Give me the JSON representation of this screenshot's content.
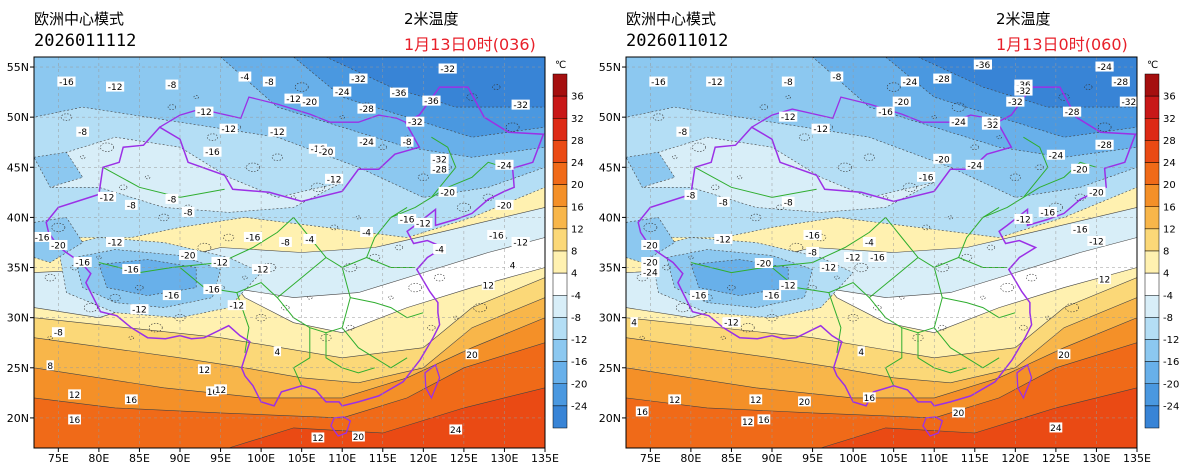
{
  "panels": [
    {
      "model": "欧洲中心模式",
      "run": "2026011112",
      "variable": "2米温度",
      "valid": "1月13日0时(036)",
      "labels": [
        {
          "t": "-16",
          "lon": 76,
          "lat": 53.5
        },
        {
          "t": "-12",
          "lon": 82,
          "lat": 53
        },
        {
          "t": "-8",
          "lon": 89,
          "lat": 53.2
        },
        {
          "t": "-4",
          "lon": 98,
          "lat": 54
        },
        {
          "t": "-8",
          "lon": 101,
          "lat": 53.5
        },
        {
          "t": "-12",
          "lon": 104,
          "lat": 51.8
        },
        {
          "t": "-20",
          "lon": 106,
          "lat": 51.5
        },
        {
          "t": "-32",
          "lon": 112,
          "lat": 53.8
        },
        {
          "t": "-24",
          "lon": 110,
          "lat": 52.5
        },
        {
          "t": "-36",
          "lon": 117,
          "lat": 52.4
        },
        {
          "t": "-28",
          "lon": 113,
          "lat": 50.8
        },
        {
          "t": "-32",
          "lon": 123,
          "lat": 54.8
        },
        {
          "t": "-36",
          "lon": 121,
          "lat": 51.6
        },
        {
          "t": "-32",
          "lon": 132,
          "lat": 51.2
        },
        {
          "t": "-12",
          "lon": 93,
          "lat": 50.5
        },
        {
          "t": "-12",
          "lon": 96,
          "lat": 48.8
        },
        {
          "t": "-8",
          "lon": 78,
          "lat": 48.5
        },
        {
          "t": "-12",
          "lon": 102,
          "lat": 48.5
        },
        {
          "t": "-16",
          "lon": 107,
          "lat": 46.8
        },
        {
          "t": "-20",
          "lon": 108,
          "lat": 46.5
        },
        {
          "t": "-24",
          "lon": 113,
          "lat": 47.5
        },
        {
          "t": "-32",
          "lon": 119,
          "lat": 49.5
        },
        {
          "t": "-8",
          "lon": 118,
          "lat": 47.5
        },
        {
          "t": "-32",
          "lon": 122,
          "lat": 45.8
        },
        {
          "t": "-28",
          "lon": 122,
          "lat": 44.8
        },
        {
          "t": "-24",
          "lon": 130,
          "lat": 45.2
        },
        {
          "t": "-20",
          "lon": 123,
          "lat": 42.5
        },
        {
          "t": "-20",
          "lon": 130,
          "lat": 41.2
        },
        {
          "t": "-12",
          "lon": 109,
          "lat": 43.8
        },
        {
          "t": "-16",
          "lon": 94,
          "lat": 46.5
        },
        {
          "t": "-8",
          "lon": 89,
          "lat": 41.8
        },
        {
          "t": "-12",
          "lon": 81,
          "lat": 42
        },
        {
          "t": "-8",
          "lon": 84,
          "lat": 41.2
        },
        {
          "t": "-8",
          "lon": 91,
          "lat": 40.5
        },
        {
          "t": "-16",
          "lon": 118,
          "lat": 39.8
        },
        {
          "t": "-12",
          "lon": 120,
          "lat": 39.4
        },
        {
          "t": "-16",
          "lon": 129,
          "lat": 38.2
        },
        {
          "t": "-12",
          "lon": 132,
          "lat": 37.5
        },
        {
          "t": "-16",
          "lon": 73,
          "lat": 38
        },
        {
          "t": "-20",
          "lon": 75,
          "lat": 37.2
        },
        {
          "t": "-12",
          "lon": 82,
          "lat": 37.5
        },
        {
          "t": "-16",
          "lon": 99,
          "lat": 38
        },
        {
          "t": "-8",
          "lon": 103,
          "lat": 37.5
        },
        {
          "t": "-4",
          "lon": 106,
          "lat": 37.8
        },
        {
          "t": "-4",
          "lon": 113,
          "lat": 38.5
        },
        {
          "t": "-16",
          "lon": 78,
          "lat": 35.5
        },
        {
          "t": "-16",
          "lon": 84,
          "lat": 34.8
        },
        {
          "t": "-20",
          "lon": 91,
          "lat": 36.2
        },
        {
          "t": "-12",
          "lon": 95,
          "lat": 35.5
        },
        {
          "t": "-12",
          "lon": 100,
          "lat": 34.8
        },
        {
          "t": "-4",
          "lon": 122,
          "lat": 36.8
        },
        {
          "t": "4",
          "lon": 131,
          "lat": 35.2
        },
        {
          "t": "-16",
          "lon": 89,
          "lat": 32.2
        },
        {
          "t": "-12",
          "lon": 85,
          "lat": 30.8
        },
        {
          "t": "-16",
          "lon": 94,
          "lat": 32.8
        },
        {
          "t": "-12",
          "lon": 97,
          "lat": 31.2
        },
        {
          "t": "-8",
          "lon": 75,
          "lat": 28.5
        },
        {
          "t": "12",
          "lon": 128,
          "lat": 33.2
        },
        {
          "t": "8",
          "lon": 74,
          "lat": 25.2
        },
        {
          "t": "4",
          "lon": 102,
          "lat": 26.6
        },
        {
          "t": "12",
          "lon": 93,
          "lat": 24.8
        },
        {
          "t": "20",
          "lon": 126,
          "lat": 26.3
        },
        {
          "t": "12",
          "lon": 77,
          "lat": 22.3
        },
        {
          "t": "16",
          "lon": 84,
          "lat": 21.8
        },
        {
          "t": "16",
          "lon": 94,
          "lat": 22.6
        },
        {
          "t": "12",
          "lon": 95,
          "lat": 22.8
        },
        {
          "t": "16",
          "lon": 77,
          "lat": 19.8
        },
        {
          "t": "12",
          "lon": 107,
          "lat": 18
        },
        {
          "t": "20",
          "lon": 112,
          "lat": 18.1
        },
        {
          "t": "24",
          "lon": 124,
          "lat": 18.8
        }
      ]
    },
    {
      "model": "欧洲中心模式",
      "run": "2026011012",
      "variable": "2米温度",
      "valid": "1月13日0时(060)",
      "labels": [
        {
          "t": "-16",
          "lon": 76,
          "lat": 53.5
        },
        {
          "t": "-12",
          "lon": 83,
          "lat": 53.5
        },
        {
          "t": "-8",
          "lon": 92,
          "lat": 53.5
        },
        {
          "t": "-8",
          "lon": 98,
          "lat": 54
        },
        {
          "t": "-24",
          "lon": 107,
          "lat": 53.5
        },
        {
          "t": "-28",
          "lon": 111,
          "lat": 53.8
        },
        {
          "t": "-36",
          "lon": 116,
          "lat": 55.2
        },
        {
          "t": "-24",
          "lon": 131,
          "lat": 55
        },
        {
          "t": "-28",
          "lon": 133,
          "lat": 53.5
        },
        {
          "t": "-36",
          "lon": 121,
          "lat": 53.2
        },
        {
          "t": "-32",
          "lon": 120,
          "lat": 51.5
        },
        {
          "t": "-32",
          "lon": 121,
          "lat": 52.6
        },
        {
          "t": "-28",
          "lon": 127,
          "lat": 50.5
        },
        {
          "t": "-32",
          "lon": 134,
          "lat": 51.5
        },
        {
          "t": "-20",
          "lon": 106,
          "lat": 51.5
        },
        {
          "t": "-12",
          "lon": 92,
          "lat": 50
        },
        {
          "t": "-12",
          "lon": 96,
          "lat": 48.8
        },
        {
          "t": "-16",
          "lon": 104,
          "lat": 50.5
        },
        {
          "t": "-24",
          "lon": 113,
          "lat": 49.5
        },
        {
          "t": "-28",
          "lon": 117,
          "lat": 49.5
        },
        {
          "t": "-32",
          "lon": 117,
          "lat": 49.2
        },
        {
          "t": "-8",
          "lon": 79,
          "lat": 48.5
        },
        {
          "t": "-20",
          "lon": 111,
          "lat": 45.8
        },
        {
          "t": "-24",
          "lon": 115,
          "lat": 45.2
        },
        {
          "t": "-24",
          "lon": 125,
          "lat": 46.2
        },
        {
          "t": "-28",
          "lon": 131,
          "lat": 47.2
        },
        {
          "t": "-20",
          "lon": 128,
          "lat": 44.8
        },
        {
          "t": "-20",
          "lon": 130,
          "lat": 42.5
        },
        {
          "t": "-16",
          "lon": 109,
          "lat": 44
        },
        {
          "t": "-8",
          "lon": 80,
          "lat": 42.2
        },
        {
          "t": "-8",
          "lon": 84,
          "lat": 41.5
        },
        {
          "t": "-8",
          "lon": 92,
          "lat": 41.5
        },
        {
          "t": "-16",
          "lon": 124,
          "lat": 40.5
        },
        {
          "t": "-12",
          "lon": 121,
          "lat": 39.8
        },
        {
          "t": "-16",
          "lon": 128,
          "lat": 38.8
        },
        {
          "t": "-12",
          "lon": 130,
          "lat": 37.6
        },
        {
          "t": "-20",
          "lon": 75,
          "lat": 37.2
        },
        {
          "t": "-12",
          "lon": 84,
          "lat": 37.8
        },
        {
          "t": "-16",
          "lon": 95,
          "lat": 38.2
        },
        {
          "t": "-8",
          "lon": 95,
          "lat": 36.5
        },
        {
          "t": "-12",
          "lon": 97,
          "lat": 35
        },
        {
          "t": "-12",
          "lon": 100,
          "lat": 36
        },
        {
          "t": "-16",
          "lon": 103,
          "lat": 36
        },
        {
          "t": "-4",
          "lon": 102,
          "lat": 37.5
        },
        {
          "t": "-20",
          "lon": 89,
          "lat": 35.4
        },
        {
          "t": "-20",
          "lon": 75,
          "lat": 35.5
        },
        {
          "t": "-24",
          "lon": 75,
          "lat": 34.5
        },
        {
          "t": "-16",
          "lon": 81,
          "lat": 32.2
        },
        {
          "t": "-12",
          "lon": 92,
          "lat": 33.2
        },
        {
          "t": "-16",
          "lon": 90,
          "lat": 32.2
        },
        {
          "t": "-12",
          "lon": 85,
          "lat": 29.5
        },
        {
          "t": "4",
          "lon": 73,
          "lat": 29.5
        },
        {
          "t": "12",
          "lon": 131,
          "lat": 33.8
        },
        {
          "t": "4",
          "lon": 101,
          "lat": 26.6
        },
        {
          "t": "16",
          "lon": 102,
          "lat": 22
        },
        {
          "t": "20",
          "lon": 126,
          "lat": 26.3
        },
        {
          "t": "20",
          "lon": 113,
          "lat": 20.5
        },
        {
          "t": "24",
          "lon": 125,
          "lat": 19
        },
        {
          "t": "12",
          "lon": 78,
          "lat": 21.8
        },
        {
          "t": "16",
          "lon": 74,
          "lat": 20.6
        },
        {
          "t": "12",
          "lon": 88,
          "lat": 21.8
        },
        {
          "t": "16",
          "lon": 89,
          "lat": 19.8
        },
        {
          "t": "20",
          "lon": 94,
          "lat": 21.6
        },
        {
          "t": "12",
          "lon": 87,
          "lat": 19.6
        }
      ]
    }
  ],
  "map": {
    "lon_range": [
      72,
      135
    ],
    "lat_range": [
      17,
      56
    ],
    "lon_ticks": [
      "75E",
      "80E",
      "85E",
      "90E",
      "95E",
      "100E",
      "105E",
      "110E",
      "115E",
      "120E",
      "125E",
      "130E",
      "135E"
    ],
    "lat_ticks": [
      "20N",
      "25N",
      "30N",
      "35N",
      "40N",
      "45N",
      "50N",
      "55N"
    ]
  },
  "colorbar": {
    "unit": "℃",
    "labels": [
      "36",
      "32",
      "28",
      "24",
      "20",
      "16",
      "12",
      "8",
      "4",
      "-4",
      "-8",
      "-12",
      "-16",
      "-20",
      "-24"
    ],
    "colors": [
      "#a50f0f",
      "#c81818",
      "#dd2a15",
      "#ea4a14",
      "#f06a18",
      "#f49028",
      "#f8b64a",
      "#fbd878",
      "#fff1b0",
      "#ffffff",
      "#d8eef8",
      "#b4def5",
      "#8cc8f0",
      "#68b0ea",
      "#4a98e0",
      "#3884d6"
    ]
  }
}
